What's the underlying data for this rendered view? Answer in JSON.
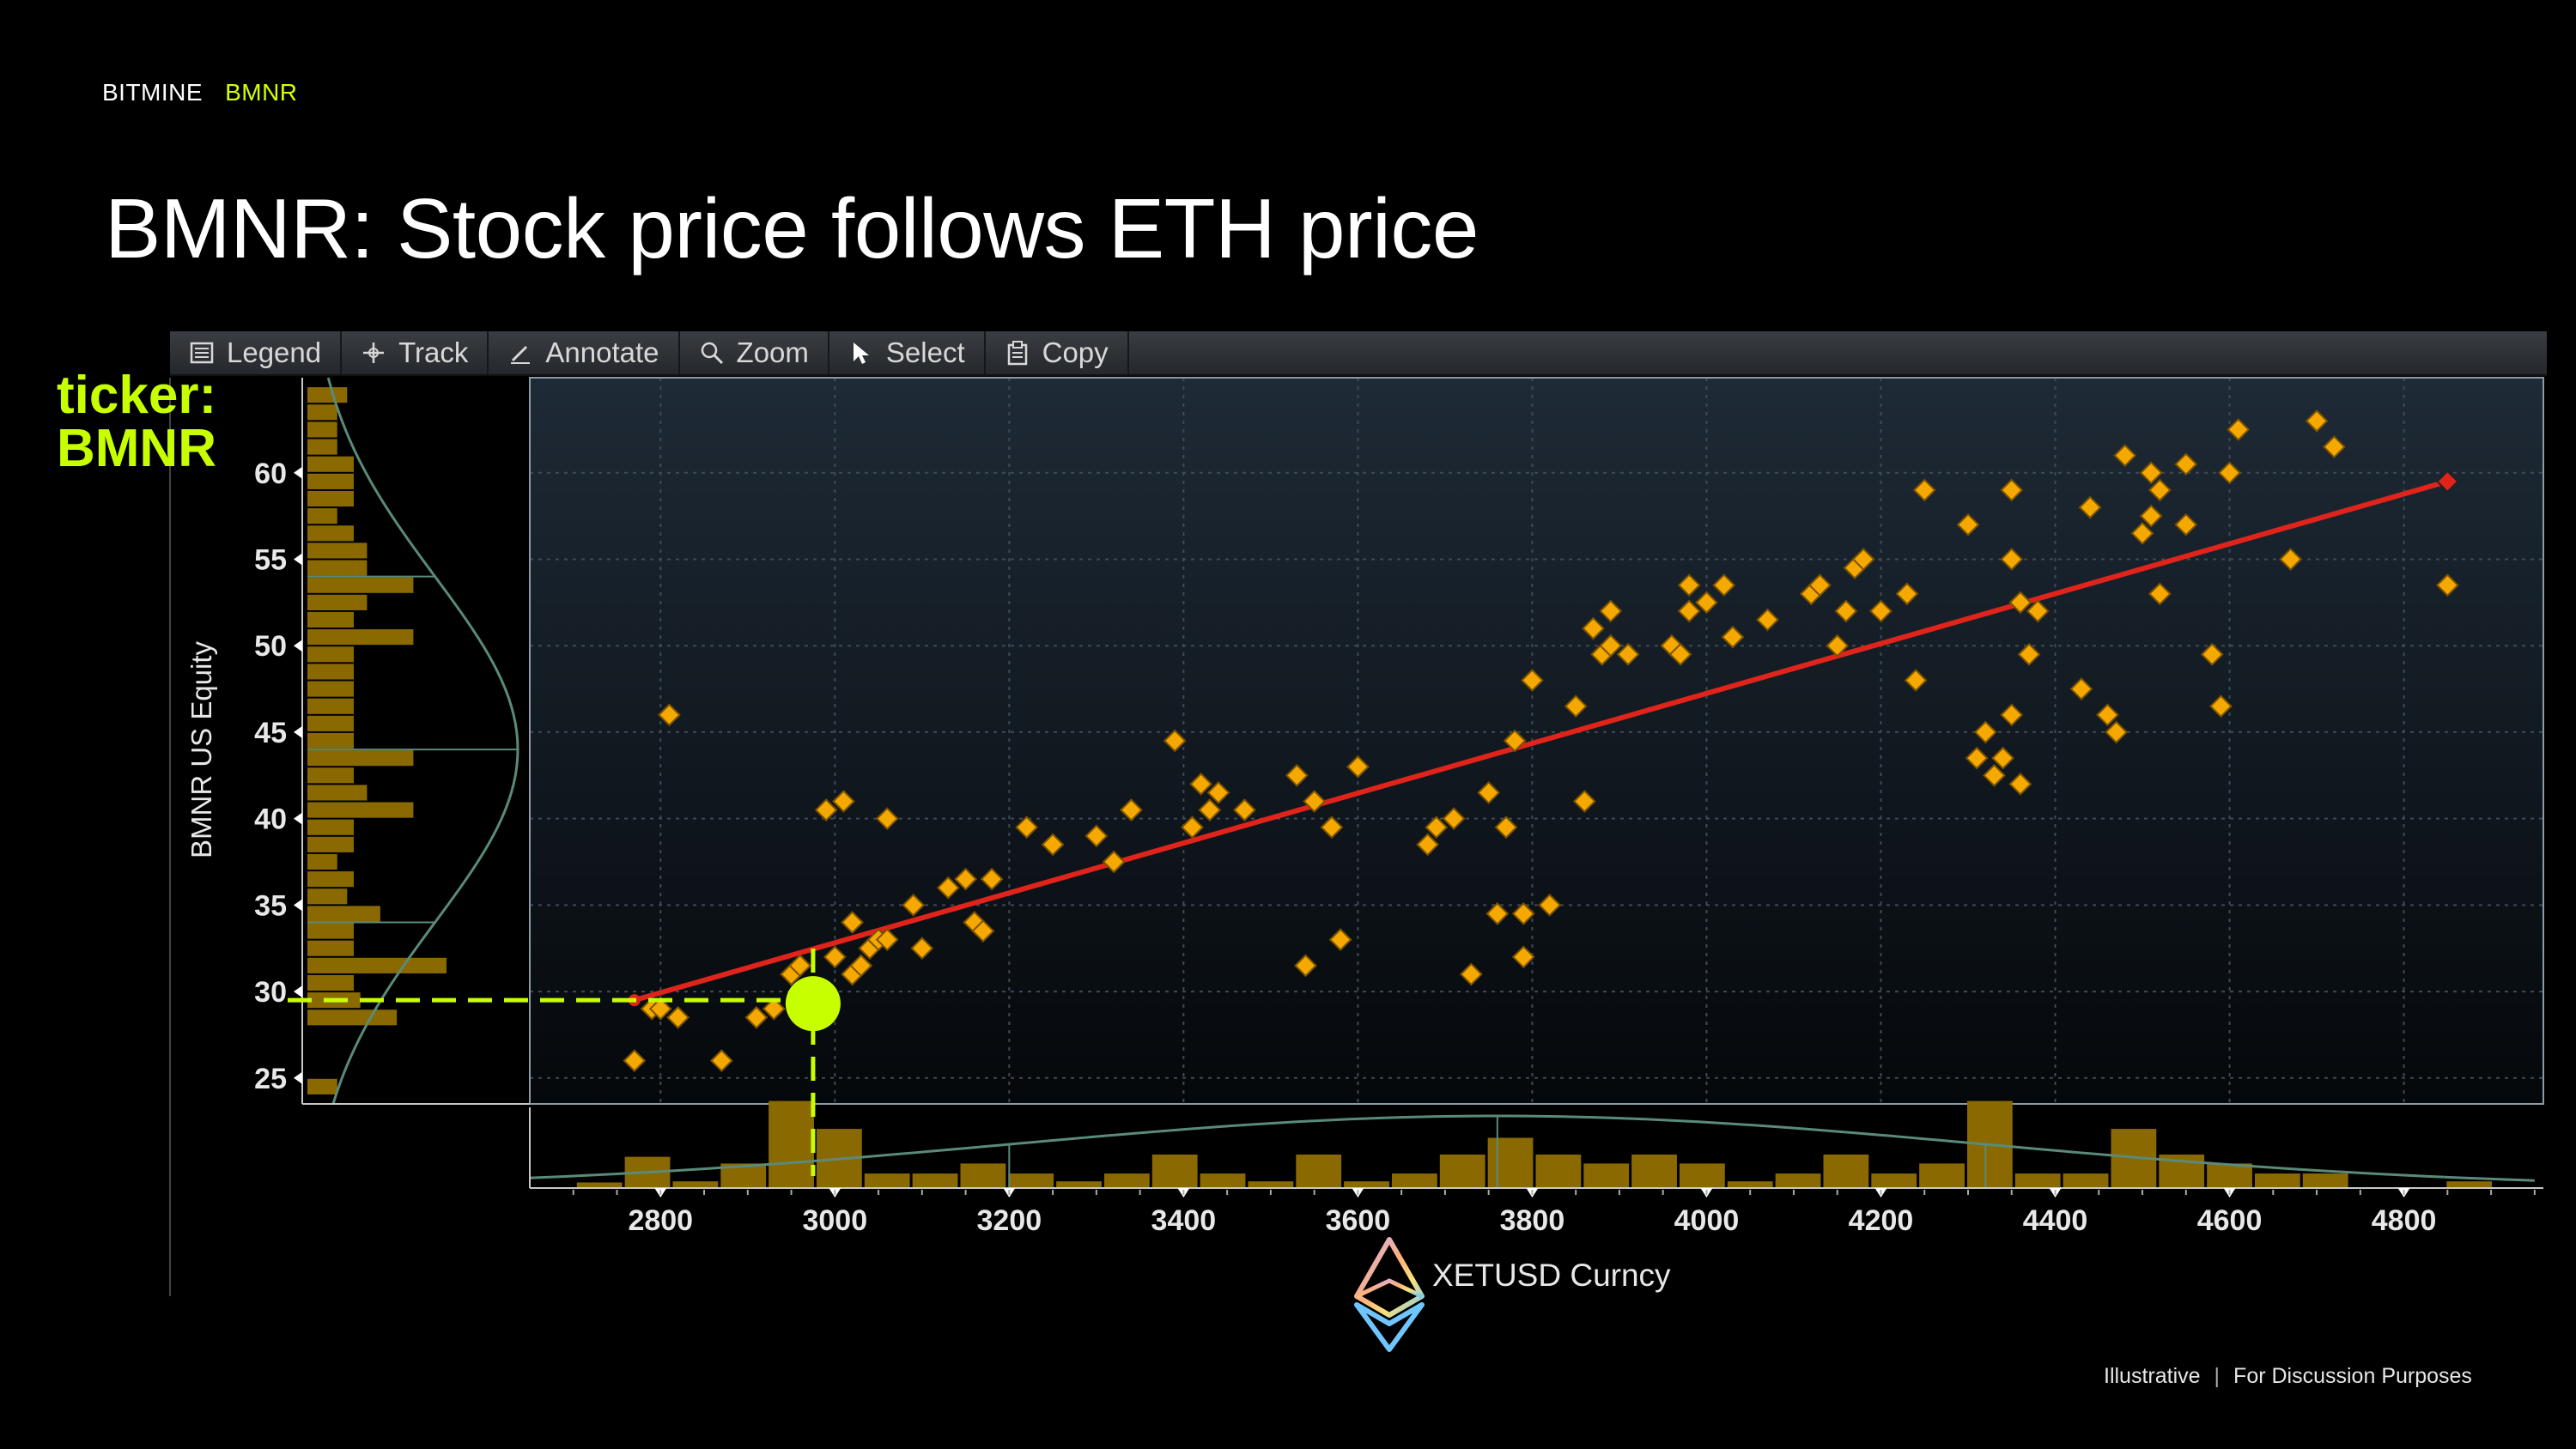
{
  "header": {
    "company": "BITMINE",
    "ticker": "BMNR"
  },
  "slide_title": "BMNR: Stock price follows ETH price",
  "toolbar": {
    "items": [
      {
        "label": "Legend",
        "icon": "legend-icon"
      },
      {
        "label": "Track",
        "icon": "crosshair-icon"
      },
      {
        "label": "Annotate",
        "icon": "pen-icon"
      },
      {
        "label": "Zoom",
        "icon": "magnifier-icon"
      },
      {
        "label": "Select",
        "icon": "cursor-icon"
      },
      {
        "label": "Copy",
        "icon": "clipboard-icon"
      }
    ]
  },
  "callout": {
    "line1": "ticker:",
    "line2": "BMNR"
  },
  "footer": {
    "left": "Illustrative",
    "right": "For Discussion Purposes"
  },
  "colors": {
    "accent": "#c8ff00",
    "points": "#f5a800",
    "fit": "#e0241b",
    "bars": "#8a6a00",
    "curve": "#5a8a7a",
    "plot_bg": "#1e2a36"
  },
  "chart_data": {
    "type": "scatter",
    "title": "",
    "xlabel": "XETUSD Curncy",
    "ylabel": "BMNR US Equity",
    "xlim": [
      2650,
      4960
    ],
    "ylim": [
      23.5,
      65.5
    ],
    "xticks": [
      2800,
      3000,
      3200,
      3400,
      3600,
      3800,
      4000,
      4200,
      4400,
      4600,
      4800
    ],
    "yticks": [
      25,
      30,
      35,
      40,
      45,
      50,
      55,
      60
    ],
    "grid": true,
    "regression_line": {
      "x": [
        2770,
        4850
      ],
      "y": [
        29.5,
        59.5
      ]
    },
    "highlight_point": {
      "x": 2975,
      "y": 29.3
    },
    "points": [
      [
        2770,
        26
      ],
      [
        2810,
        46
      ],
      [
        2790,
        29
      ],
      [
        2800,
        29
      ],
      [
        2820,
        28.5
      ],
      [
        2870,
        26
      ],
      [
        2910,
        28.5
      ],
      [
        2930,
        29
      ],
      [
        2950,
        31
      ],
      [
        2960,
        31.5
      ],
      [
        2980,
        29.5
      ],
      [
        2990,
        40.5
      ],
      [
        3000,
        32
      ],
      [
        3010,
        41
      ],
      [
        3020,
        31
      ],
      [
        3030,
        31.5
      ],
      [
        3040,
        32.5
      ],
      [
        3050,
        33
      ],
      [
        3020,
        34
      ],
      [
        3060,
        40
      ],
      [
        3060,
        33
      ],
      [
        3090,
        35
      ],
      [
        3100,
        32.5
      ],
      [
        3130,
        36
      ],
      [
        3150,
        36.5
      ],
      [
        3160,
        34
      ],
      [
        3170,
        33.5
      ],
      [
        3180,
        36.5
      ],
      [
        3220,
        39.5
      ],
      [
        3250,
        38.5
      ],
      [
        3300,
        39
      ],
      [
        3320,
        37.5
      ],
      [
        3340,
        40.5
      ],
      [
        3390,
        44.5
      ],
      [
        3410,
        39.5
      ],
      [
        3420,
        42
      ],
      [
        3430,
        40.5
      ],
      [
        3440,
        41.5
      ],
      [
        3470,
        40.5
      ],
      [
        3530,
        42.5
      ],
      [
        3550,
        41
      ],
      [
        3540,
        31.5
      ],
      [
        3570,
        39.5
      ],
      [
        3580,
        33
      ],
      [
        3600,
        43
      ],
      [
        3680,
        38.5
      ],
      [
        3690,
        39.5
      ],
      [
        3710,
        40
      ],
      [
        3730,
        31
      ],
      [
        3750,
        41.5
      ],
      [
        3760,
        34.5
      ],
      [
        3770,
        39.5
      ],
      [
        3780,
        44.5
      ],
      [
        3790,
        32
      ],
      [
        3790,
        34.5
      ],
      [
        3800,
        48
      ],
      [
        3820,
        35
      ],
      [
        3850,
        46.5
      ],
      [
        3860,
        41
      ],
      [
        3870,
        51
      ],
      [
        3880,
        49.5
      ],
      [
        3890,
        52
      ],
      [
        3890,
        50
      ],
      [
        3910,
        49.5
      ],
      [
        3960,
        50
      ],
      [
        3970,
        49.5
      ],
      [
        3980,
        52
      ],
      [
        3980,
        53.5
      ],
      [
        4000,
        52.5
      ],
      [
        4020,
        53.5
      ],
      [
        4030,
        50.5
      ],
      [
        4070,
        51.5
      ],
      [
        4120,
        53
      ],
      [
        4130,
        53.5
      ],
      [
        4150,
        50
      ],
      [
        4160,
        52
      ],
      [
        4170,
        54.5
      ],
      [
        4180,
        55
      ],
      [
        4200,
        52
      ],
      [
        4230,
        53
      ],
      [
        4240,
        48
      ],
      [
        4250,
        59
      ],
      [
        4300,
        57
      ],
      [
        4310,
        43.5
      ],
      [
        4320,
        45
      ],
      [
        4330,
        42.5
      ],
      [
        4340,
        43.5
      ],
      [
        4350,
        46
      ],
      [
        4350,
        55
      ],
      [
        4350,
        59
      ],
      [
        4360,
        52.5
      ],
      [
        4360,
        42
      ],
      [
        4370,
        49.5
      ],
      [
        4380,
        52
      ],
      [
        4430,
        47.5
      ],
      [
        4440,
        58
      ],
      [
        4460,
        46
      ],
      [
        4470,
        45
      ],
      [
        4480,
        61
      ],
      [
        4500,
        56.5
      ],
      [
        4510,
        60
      ],
      [
        4510,
        57.5
      ],
      [
        4520,
        59
      ],
      [
        4520,
        53
      ],
      [
        4550,
        57
      ],
      [
        4550,
        60.5
      ],
      [
        4580,
        49.5
      ],
      [
        4590,
        46.5
      ],
      [
        4600,
        60
      ],
      [
        4610,
        62.5
      ],
      [
        4670,
        55
      ],
      [
        4700,
        63
      ],
      [
        4720,
        61.5
      ],
      [
        4850,
        59.5
      ],
      [
        4850,
        53.5
      ]
    ],
    "y_histogram": [
      [
        24.5,
        0.09
      ],
      [
        25.5,
        0.0
      ],
      [
        27.5,
        0.0
      ],
      [
        28.5,
        0.27
      ],
      [
        29.5,
        0.16
      ],
      [
        30.5,
        0.14
      ],
      [
        31.5,
        0.42
      ],
      [
        32.5,
        0.14
      ],
      [
        33.5,
        0.14
      ],
      [
        34.5,
        0.22
      ],
      [
        35.5,
        0.12
      ],
      [
        36.5,
        0.14
      ],
      [
        37.5,
        0.09
      ],
      [
        38.5,
        0.14
      ],
      [
        39.5,
        0.14
      ],
      [
        40.5,
        0.32
      ],
      [
        41.5,
        0.18
      ],
      [
        42.5,
        0.14
      ],
      [
        43.5,
        0.32
      ],
      [
        44.5,
        0.14
      ],
      [
        45.5,
        0.14
      ],
      [
        46.5,
        0.14
      ],
      [
        47.5,
        0.14
      ],
      [
        48.5,
        0.14
      ],
      [
        49.5,
        0.14
      ],
      [
        50.5,
        0.32
      ],
      [
        51.5,
        0.14
      ],
      [
        52.5,
        0.18
      ],
      [
        53.5,
        0.32
      ],
      [
        54.5,
        0.18
      ],
      [
        55.5,
        0.18
      ],
      [
        56.5,
        0.14
      ],
      [
        57.5,
        0.09
      ],
      [
        58.5,
        0.14
      ],
      [
        59.5,
        0.14
      ],
      [
        60.5,
        0.14
      ],
      [
        61.5,
        0.09
      ],
      [
        62.5,
        0.09
      ],
      [
        63.5,
        0.09
      ],
      [
        64.5,
        0.12
      ]
    ],
    "x_histogram": [
      [
        2730,
        0.05
      ],
      [
        2785,
        0.28
      ],
      [
        2840,
        0.06
      ],
      [
        2895,
        0.22
      ],
      [
        2950,
        0.78
      ],
      [
        3005,
        0.53
      ],
      [
        3060,
        0.13
      ],
      [
        3115,
        0.13
      ],
      [
        3170,
        0.22
      ],
      [
        3225,
        0.13
      ],
      [
        3280,
        0.06
      ],
      [
        3335,
        0.13
      ],
      [
        3390,
        0.3
      ],
      [
        3445,
        0.13
      ],
      [
        3500,
        0.06
      ],
      [
        3555,
        0.3
      ],
      [
        3610,
        0.06
      ],
      [
        3665,
        0.13
      ],
      [
        3720,
        0.3
      ],
      [
        3775,
        0.45
      ],
      [
        3830,
        0.3
      ],
      [
        3885,
        0.22
      ],
      [
        3940,
        0.3
      ],
      [
        3995,
        0.22
      ],
      [
        4050,
        0.06
      ],
      [
        4105,
        0.13
      ],
      [
        4160,
        0.3
      ],
      [
        4215,
        0.13
      ],
      [
        4270,
        0.22
      ],
      [
        4325,
        0.78
      ],
      [
        4380,
        0.13
      ],
      [
        4435,
        0.13
      ],
      [
        4490,
        0.53
      ],
      [
        4545,
        0.3
      ],
      [
        4600,
        0.22
      ],
      [
        4655,
        0.13
      ],
      [
        4710,
        0.13
      ],
      [
        4765,
        0.0
      ],
      [
        4820,
        0.0
      ],
      [
        4875,
        0.06
      ]
    ]
  }
}
